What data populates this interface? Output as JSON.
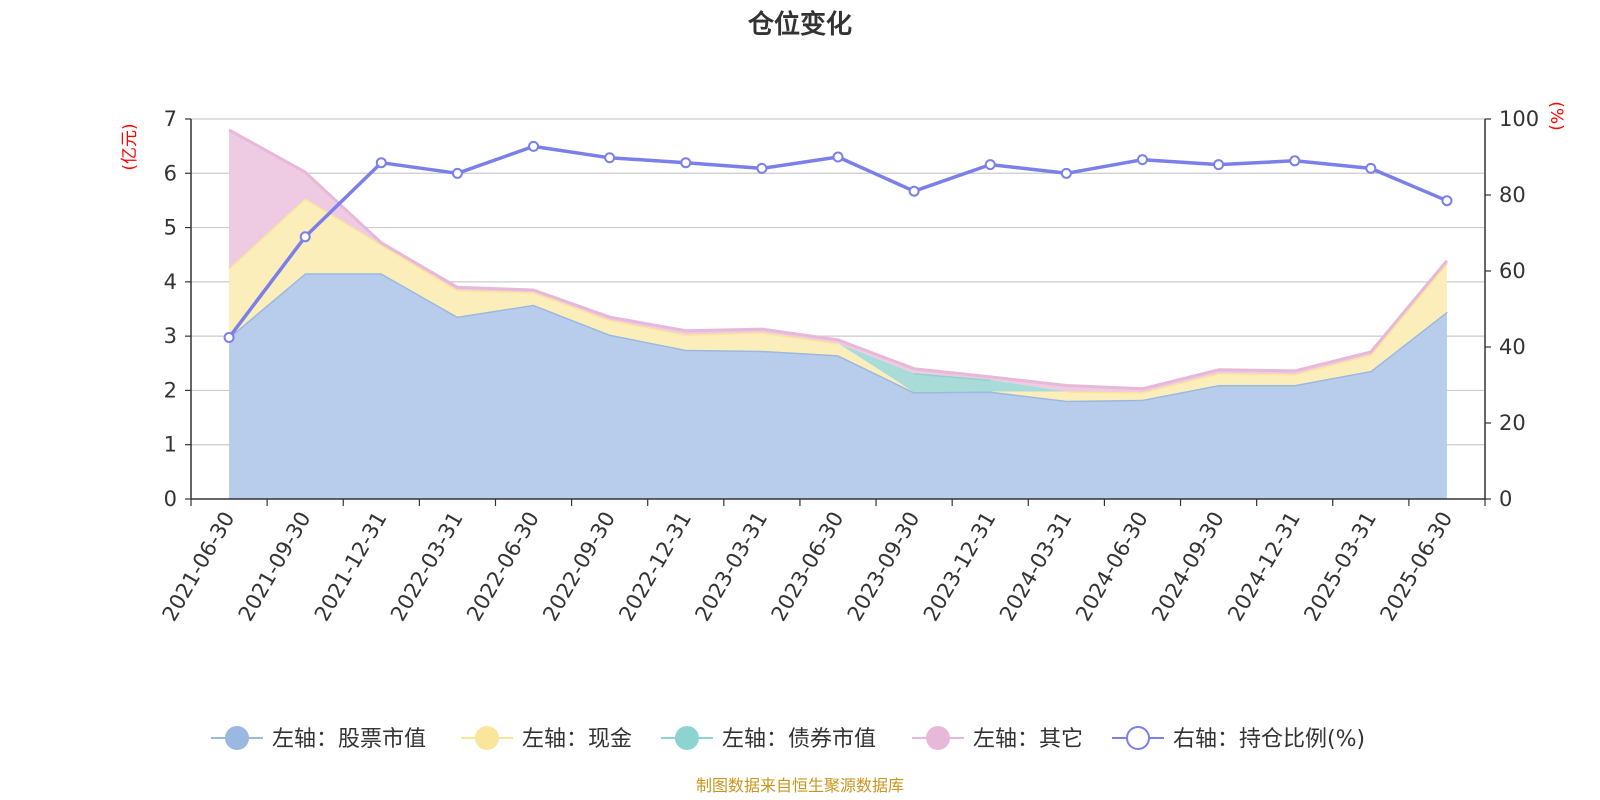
{
  "chart_data": {
    "type": "area",
    "title": "仓位变化",
    "categories": [
      "2021-06-30",
      "2021-09-30",
      "2021-12-31",
      "2022-03-31",
      "2022-06-30",
      "2022-09-30",
      "2022-12-31",
      "2023-03-31",
      "2023-06-30",
      "2023-09-30",
      "2023-12-31",
      "2024-03-31",
      "2024-06-30",
      "2024-09-30",
      "2024-12-31",
      "2025-03-31",
      "2025-06-30"
    ],
    "left_axis": {
      "unit": "(亿元)",
      "ylim": [
        0,
        7
      ],
      "ticks": [
        0,
        1,
        2,
        3,
        4,
        5,
        6,
        7
      ]
    },
    "right_axis": {
      "unit": "(%)",
      "ylim": [
        0,
        100
      ],
      "ticks": [
        0,
        20,
        40,
        60,
        80,
        100
      ]
    },
    "series": [
      {
        "name": "左轴：股票市值",
        "axis": "left",
        "kind": "area",
        "color": "#9bb8e0",
        "fill": "#b8cdeb",
        "values": [
          2.98,
          4.16,
          4.16,
          3.36,
          3.58,
          3.03,
          2.75,
          2.73,
          2.65,
          1.97,
          1.98,
          1.81,
          1.83,
          2.1,
          2.1,
          2.36,
          3.45
        ]
      },
      {
        "name": "左轴：现金",
        "axis": "left",
        "kind": "area",
        "color": "#fae69a",
        "fill": "#fbeebb",
        "values": [
          1.27,
          1.38,
          0.53,
          0.49,
          0.23,
          0.27,
          0.28,
          0.34,
          0.22,
          0.0,
          0.0,
          0.17,
          0.14,
          0.22,
          0.2,
          0.3,
          0.9
        ]
      },
      {
        "name": "左轴：债券市值",
        "axis": "left",
        "kind": "area",
        "color": "#8dd3d0",
        "fill": "#a9dcd9",
        "values": [
          0.0,
          0.0,
          0.0,
          0.0,
          0.0,
          0.0,
          0.0,
          0.0,
          0.0,
          0.35,
          0.22,
          0.0,
          0.0,
          0.0,
          0.0,
          0.0,
          0.0
        ]
      },
      {
        "name": "左轴：其它",
        "axis": "left",
        "kind": "area",
        "color": "#e8b8d8",
        "fill": "#eecbe3",
        "values": [
          2.55,
          0.48,
          0.03,
          0.05,
          0.04,
          0.05,
          0.07,
          0.06,
          0.06,
          0.08,
          0.05,
          0.11,
          0.06,
          0.06,
          0.06,
          0.05,
          0.04
        ]
      },
      {
        "name": "右轴：持仓比例(%)",
        "axis": "right",
        "kind": "line",
        "color": "#7b7fe9",
        "values": [
          42.5,
          69.0,
          88.5,
          85.7,
          92.8,
          89.8,
          88.5,
          87.0,
          90.0,
          81.0,
          88.0,
          85.7,
          89.3,
          88.0,
          89.0,
          87.0,
          78.5
        ]
      }
    ],
    "legend_position": "bottom",
    "grid": true,
    "source_note": "制图数据来自恒生聚源数据库"
  }
}
